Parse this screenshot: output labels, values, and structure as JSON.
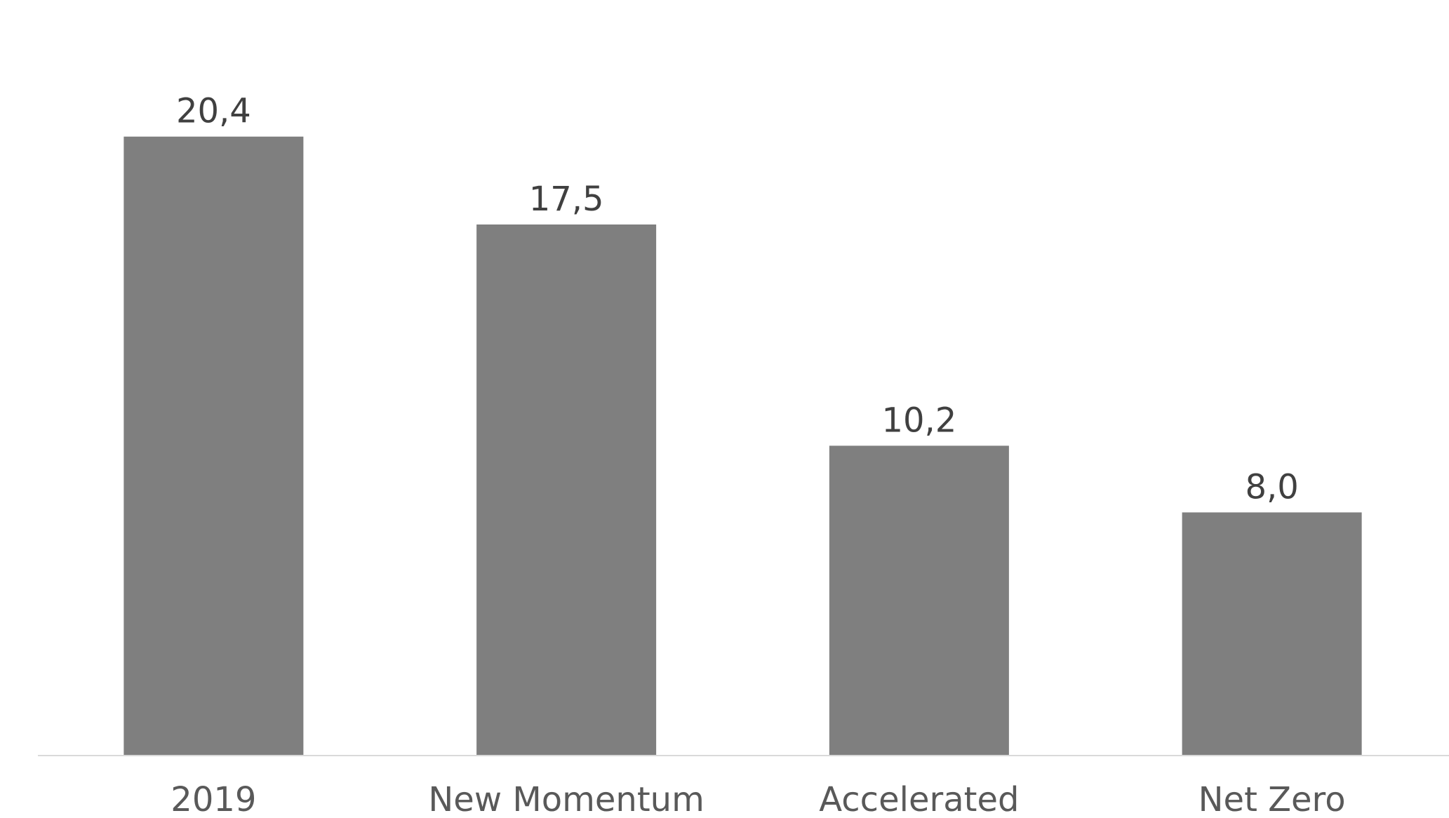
{
  "chart_data": {
    "type": "bar",
    "categories": [
      "2019",
      "New Momentum",
      "Accelerated",
      "Net Zero"
    ],
    "values": [
      20.4,
      17.5,
      10.2,
      8.0
    ],
    "value_labels": [
      "20,4",
      "17,5",
      "10,2",
      "8,0"
    ],
    "title": "",
    "xlabel": "",
    "ylabel": "",
    "ylim": [
      0,
      25
    ],
    "grid": false,
    "legend": "none",
    "bar_color": "#7f7f7f",
    "axis_color": "#d9d9d9"
  }
}
